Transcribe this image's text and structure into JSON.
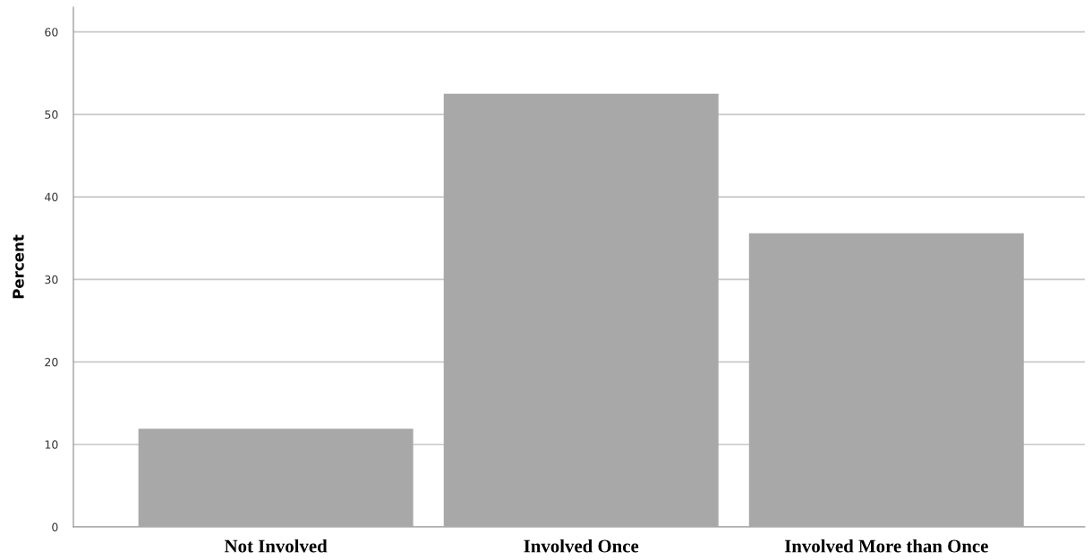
{
  "chart_data": {
    "type": "bar",
    "ylabel": "Percent",
    "categories": [
      "Not Involved",
      "Involved Once",
      "Involved More than Once"
    ],
    "values": [
      11.9,
      52.5,
      35.6
    ],
    "color": "#a8a8a8",
    "ylim": [
      0,
      63
    ],
    "yticks": [
      0,
      10,
      20,
      30,
      40,
      50,
      60
    ],
    "grid": "y",
    "legend": false
  }
}
